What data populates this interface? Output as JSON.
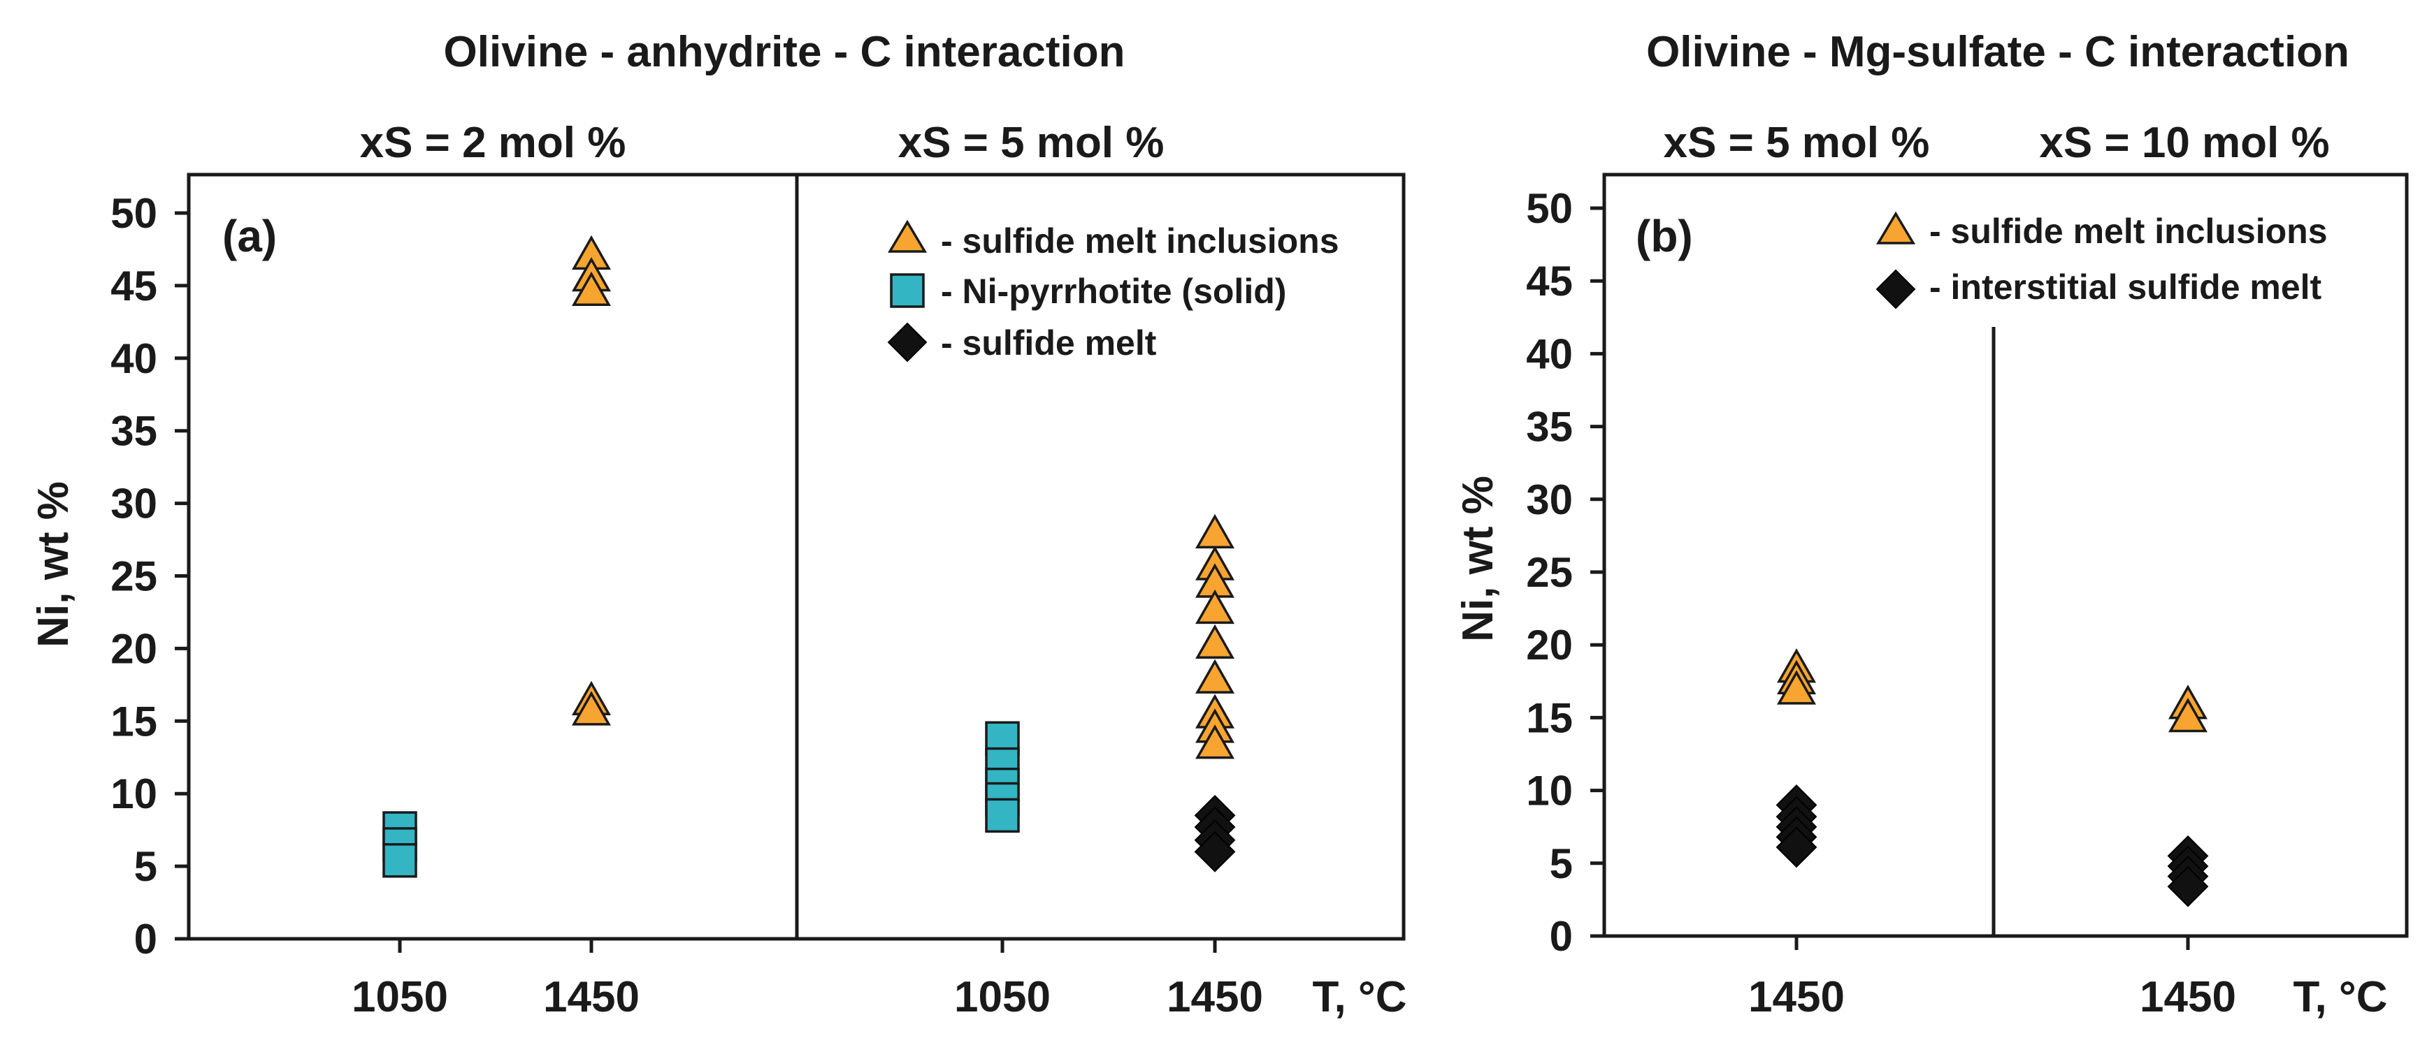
{
  "colors": {
    "triangle": "#F7A530",
    "square": "#33B5C4",
    "diamond": "#111111",
    "axis": "#1a1a1a"
  },
  "chart_data": [
    {
      "id": "a",
      "type": "scatter",
      "title": "Olivine - anhydrite - C interaction",
      "panel_label": "(a)",
      "ylabel": "Ni, wt %",
      "xlabel": "T, °C",
      "ylim": [
        0,
        50
      ],
      "yticks": [
        0,
        5,
        10,
        15,
        20,
        25,
        30,
        35,
        40,
        45,
        50
      ],
      "legend": [
        {
          "marker": "triangle",
          "label": "- sulfide melt inclusions"
        },
        {
          "marker": "square",
          "label": "- Ni-pyrrhotite (solid)"
        },
        {
          "marker": "diamond",
          "label": "- sulfide melt"
        }
      ],
      "subpanels": [
        {
          "subtitle": "xS = 2 mol %",
          "x_tick_labels": [
            "1050",
            "1450"
          ],
          "series": [
            {
              "name": "sulfide melt inclusions",
              "marker": "triangle",
              "x": "1450",
              "values": [
                47,
                45.5,
                44.5,
                16.3,
                15.6
              ]
            },
            {
              "name": "Ni-pyrrhotite (solid)",
              "marker": "square",
              "x": "1050",
              "values": [
                7.6,
                6.5,
                5.4
              ]
            }
          ]
        },
        {
          "subtitle": "xS = 5 mol %",
          "x_tick_labels": [
            "1050",
            "1450"
          ],
          "series": [
            {
              "name": "sulfide melt inclusions",
              "marker": "triangle",
              "x": "1450",
              "values": [
                27.8,
                25.6,
                24.4,
                22.6,
                20.2,
                17.8,
                15.4,
                14.4,
                13.3
              ]
            },
            {
              "name": "Ni-pyrrhotite (solid)",
              "marker": "square",
              "x": "1050",
              "values": [
                13.8,
                12,
                10.6,
                9.6,
                8.5
              ]
            },
            {
              "name": "sulfide melt",
              "marker": "diamond",
              "x": "1450",
              "values": [
                8.5,
                7.7,
                6.8,
                6.0
              ]
            }
          ]
        }
      ]
    },
    {
      "id": "b",
      "type": "scatter",
      "title": "Olivine - Mg-sulfate - C interaction",
      "panel_label": "(b)",
      "ylabel": "Ni, wt %",
      "xlabel": "T, °C",
      "ylim": [
        0,
        50
      ],
      "yticks": [
        0,
        5,
        10,
        15,
        20,
        25,
        30,
        35,
        40,
        45,
        50
      ],
      "legend": [
        {
          "marker": "triangle",
          "label": "- sulfide melt inclusions"
        },
        {
          "marker": "diamond",
          "label": "- interstitial sulfide melt"
        }
      ],
      "subpanels": [
        {
          "subtitle": "xS = 5 mol %",
          "x_tick_labels": [
            "1450"
          ],
          "series": [
            {
              "name": "sulfide melt inclusions",
              "marker": "triangle",
              "x": "1450",
              "values": [
                18.3,
                17.5,
                16.8
              ]
            },
            {
              "name": "interstitial sulfide melt",
              "marker": "diamond",
              "x": "1450",
              "values": [
                9,
                8.2,
                7.5,
                6.8,
                6.1
              ]
            }
          ]
        },
        {
          "subtitle": "xS = 10 mol %",
          "x_tick_labels": [
            "1450"
          ],
          "series": [
            {
              "name": "sulfide melt inclusions",
              "marker": "triangle",
              "x": "1450",
              "values": [
                15.8,
                14.9
              ]
            },
            {
              "name": "interstitial sulfide melt",
              "marker": "diamond",
              "x": "1450",
              "values": [
                5.5,
                4.8,
                4.1,
                3.4
              ]
            }
          ]
        }
      ]
    }
  ]
}
